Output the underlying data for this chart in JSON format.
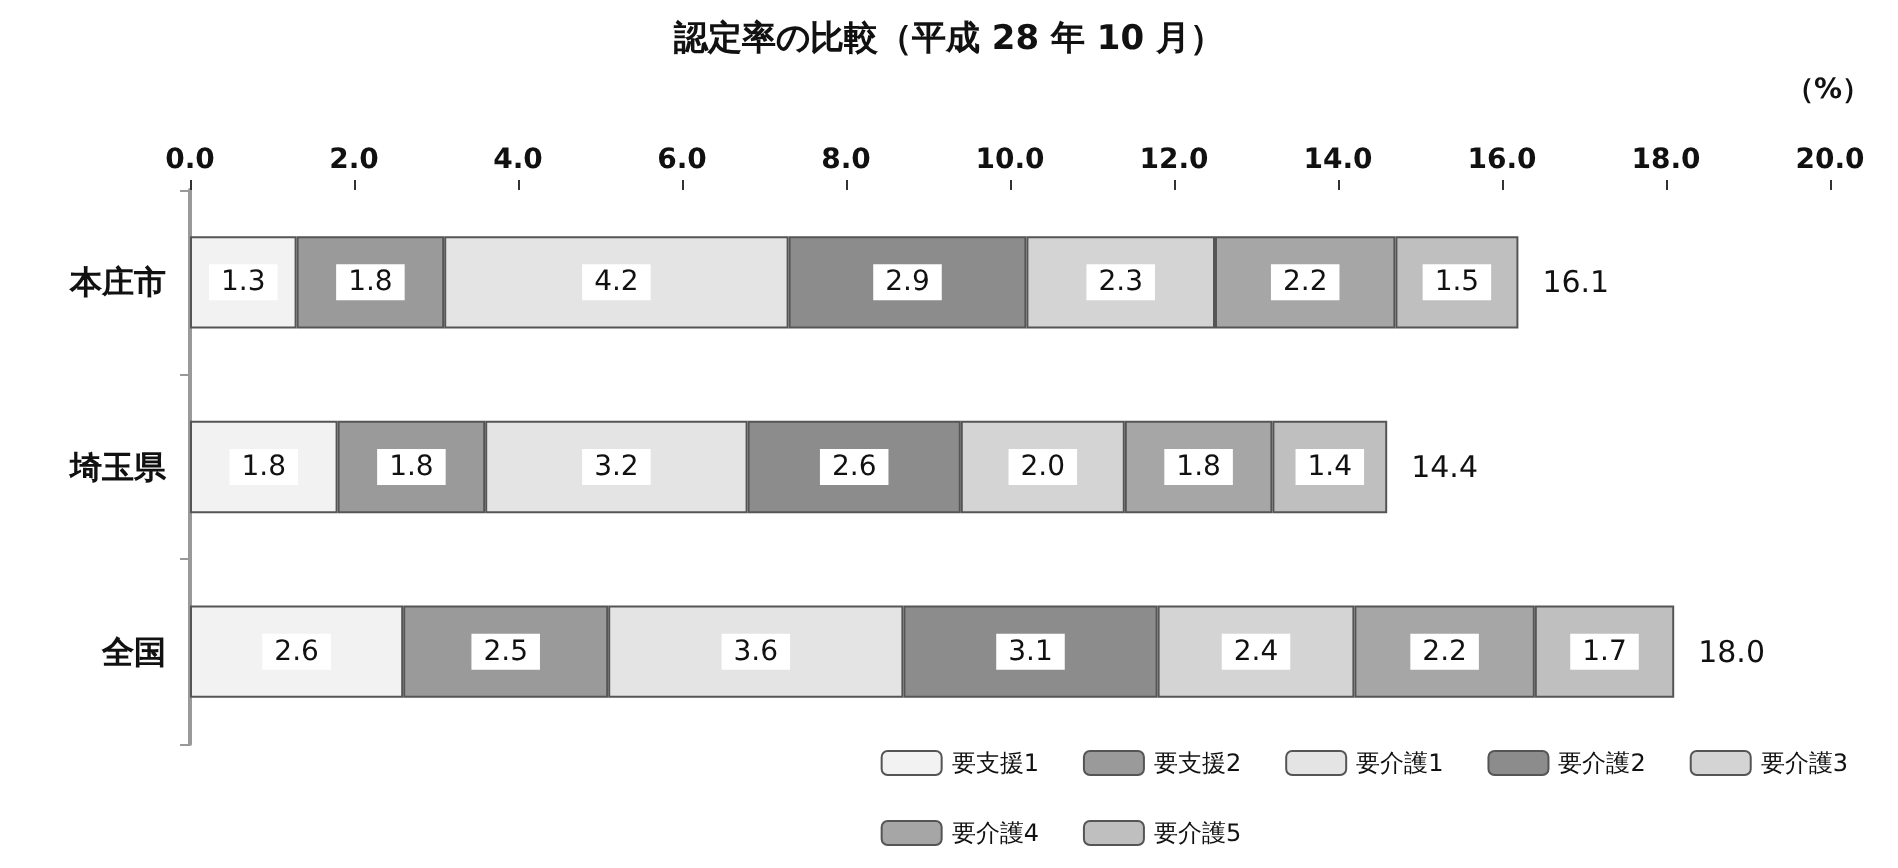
{
  "chart_data": {
    "type": "bar",
    "orientation": "horizontal",
    "stacked": true,
    "title": "認定率の比較（平成 28 年 10 月）",
    "xlabel": "（%）",
    "categories": [
      "本庄市",
      "埼玉県",
      "全国"
    ],
    "series": [
      {
        "name": "要支援1",
        "color": "#f2f2f2",
        "values": [
          1.3,
          1.8,
          2.6
        ],
        "value_labels": [
          "1.3",
          "1.8",
          "2.6"
        ]
      },
      {
        "name": "要支援2",
        "color": "#9a9a9a",
        "values": [
          1.8,
          1.8,
          2.5
        ],
        "value_labels": [
          "1.8",
          "1.8",
          "2.5"
        ]
      },
      {
        "name": "要介護1",
        "color": "#e4e4e4",
        "values": [
          4.2,
          3.2,
          3.6
        ],
        "value_labels": [
          "4.2",
          "3.2",
          "3.6"
        ]
      },
      {
        "name": "要介護2",
        "color": "#8c8c8c",
        "values": [
          2.9,
          2.6,
          3.1
        ],
        "value_labels": [
          "2.9",
          "2.6",
          "3.1"
        ]
      },
      {
        "name": "要介護3",
        "color": "#d4d4d4",
        "values": [
          2.3,
          2.0,
          2.4
        ],
        "value_labels": [
          "2.3",
          "2.0",
          "2.4"
        ]
      },
      {
        "name": "要介護4",
        "color": "#a6a6a6",
        "values": [
          2.2,
          1.8,
          2.2
        ],
        "value_labels": [
          "2.2",
          "1.8",
          "2.2"
        ]
      },
      {
        "name": "要介護5",
        "color": "#bfbfbf",
        "values": [
          1.5,
          1.4,
          1.7
        ],
        "value_labels": [
          "1.5",
          "1.4",
          "1.7"
        ]
      }
    ],
    "totals": [
      "16.1",
      "14.4",
      "18.0"
    ],
    "xlim": [
      0,
      20
    ],
    "xticks": [
      {
        "value": 0,
        "label": "0.0"
      },
      {
        "value": 2,
        "label": "2.0"
      },
      {
        "value": 4,
        "label": "4.0"
      },
      {
        "value": 6,
        "label": "6.0"
      },
      {
        "value": 8,
        "label": "8.0"
      },
      {
        "value": 10,
        "label": "10.0"
      },
      {
        "value": 12,
        "label": "12.0"
      },
      {
        "value": 14,
        "label": "14.0"
      },
      {
        "value": 16,
        "label": "16.0"
      },
      {
        "value": 18,
        "label": "18.0"
      },
      {
        "value": 20,
        "label": "20.0"
      }
    ],
    "grid": false,
    "legend": "bottom right"
  }
}
